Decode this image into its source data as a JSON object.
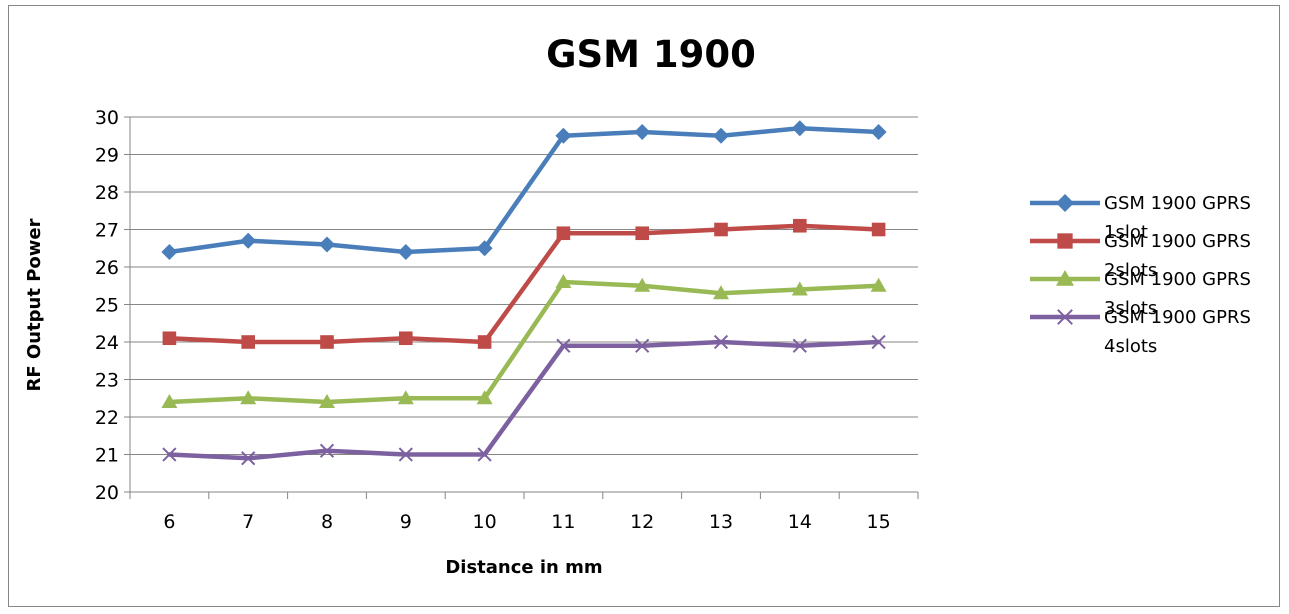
{
  "chart_data": {
    "type": "line",
    "title": "GSM 1900",
    "xlabel": "Distance in mm",
    "ylabel": "RF Output Power",
    "categories": [
      "6",
      "7",
      "8",
      "9",
      "10",
      "11",
      "12",
      "13",
      "14",
      "15"
    ],
    "ylim": [
      20,
      30
    ],
    "yticks": [
      "20",
      "21",
      "22",
      "23",
      "24",
      "25",
      "26",
      "27",
      "28",
      "29",
      "30"
    ],
    "grid": "horizontal",
    "legend": "right",
    "series": [
      {
        "name_lines": [
          "GSM 1900 GPRS",
          "1slot"
        ],
        "values": [
          26.4,
          26.7,
          26.6,
          26.4,
          26.5,
          29.5,
          29.6,
          29.5,
          29.7,
          29.6
        ],
        "color": "#4a7ebb",
        "marker": "diamond"
      },
      {
        "name_lines": [
          "GSM 1900 GPRS",
          "2slots"
        ],
        "values": [
          24.1,
          24.0,
          24.0,
          24.1,
          24.0,
          26.9,
          26.9,
          27.0,
          27.1,
          27.0
        ],
        "color": "#be4b48",
        "marker": "square"
      },
      {
        "name_lines": [
          "GSM 1900 GPRS",
          "3slots"
        ],
        "values": [
          22.4,
          22.5,
          22.4,
          22.5,
          22.5,
          25.6,
          25.5,
          25.3,
          25.4,
          25.5
        ],
        "color": "#98b954",
        "marker": "triangle"
      },
      {
        "name_lines": [
          "GSM 1900 GPRS",
          "4slots"
        ],
        "values": [
          21.0,
          20.9,
          21.1,
          21.0,
          21.0,
          23.9,
          23.9,
          24.0,
          23.9,
          24.0
        ],
        "color": "#7d60a0",
        "marker": "x"
      }
    ]
  }
}
